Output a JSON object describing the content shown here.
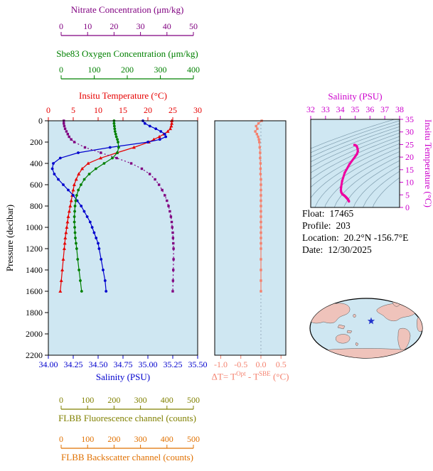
{
  "info": {
    "lines": [
      {
        "label": "Float:",
        "value": "17465"
      },
      {
        "label": "Profile:",
        "value": "203"
      },
      {
        "label": "Location:",
        "value": "20.2°N -156.7°E"
      },
      {
        "label": "Date:",
        "value": "12/30/2025"
      }
    ]
  },
  "chart_data": [
    {
      "id": "main-profile",
      "type": "line",
      "title": "",
      "ylabel": "Pressure (decibar)",
      "ylim": [
        0,
        2200
      ],
      "yticks": [
        0,
        200,
        400,
        600,
        800,
        1000,
        1200,
        1400,
        1600,
        1800,
        2000,
        2200
      ],
      "plot_bg": "#cfe7f2",
      "x_axes": [
        {
          "id": "temperature",
          "label": "Insitu Temperature (°C)",
          "color": "#e60000",
          "range": [
            0,
            30
          ],
          "ticks": [
            0,
            5,
            10,
            15,
            20,
            25,
            30
          ]
        },
        {
          "id": "oxygen",
          "label": "Sbe83 Oxygen Concentration (μm/kg)",
          "color": "#008000",
          "range": [
            0,
            400
          ],
          "ticks": [
            0,
            100,
            200,
            300,
            400
          ]
        },
        {
          "id": "nitrate",
          "label": "Nitrate Concentration (μm/kg)",
          "color": "#800080",
          "range": [
            0,
            50
          ],
          "ticks": [
            0,
            10,
            20,
            30,
            40,
            50
          ]
        },
        {
          "id": "salinity",
          "label": "Salinity (PSU)",
          "color": "#0000cd",
          "range": [
            34.0,
            35.5
          ],
          "ticks": [
            "34.00",
            "34.25",
            "34.50",
            "34.75",
            "35.00",
            "35.25",
            "35.50"
          ]
        },
        {
          "id": "fluorescence",
          "label": "FLBB Fluorescence channel (counts)",
          "color": "#808000",
          "range": [
            0,
            500
          ],
          "ticks": [
            0,
            100,
            200,
            300,
            400,
            500
          ]
        },
        {
          "id": "backscatter",
          "label": "FLBB Backscatter channel (counts)",
          "color": "#e07000",
          "range": [
            0,
            500
          ],
          "ticks": [
            0,
            100,
            200,
            300,
            400,
            500
          ]
        }
      ],
      "pressure": [
        0,
        25,
        50,
        75,
        100,
        125,
        150,
        175,
        200,
        250,
        300,
        350,
        400,
        450,
        500,
        550,
        600,
        650,
        700,
        750,
        800,
        850,
        900,
        950,
        1000,
        1050,
        1100,
        1150,
        1200,
        1300,
        1400,
        1500,
        1600
      ],
      "series": [
        {
          "name": "temperature",
          "axis": "temperature",
          "color": "#e60000",
          "marker": "triangle",
          "values": [
            24.8,
            24.8,
            24.7,
            24.5,
            24.0,
            23.2,
            22.3,
            21.2,
            20.2,
            17.2,
            13.8,
            10.5,
            8.0,
            6.8,
            6.1,
            5.6,
            5.2,
            5.0,
            4.8,
            4.6,
            4.4,
            4.2,
            4.0,
            3.85,
            3.7,
            3.55,
            3.4,
            3.3,
            3.2,
            3.0,
            2.8,
            2.6,
            2.4
          ]
        },
        {
          "name": "salinity",
          "axis": "salinity",
          "color": "#0000cd",
          "marker": "circle",
          "values": [
            34.95,
            34.97,
            35.02,
            35.08,
            35.13,
            35.17,
            35.18,
            35.12,
            35.0,
            34.62,
            34.3,
            34.12,
            34.05,
            34.04,
            34.06,
            34.1,
            34.15,
            34.2,
            34.25,
            34.29,
            34.33,
            34.36,
            34.39,
            34.42,
            34.44,
            34.46,
            34.48,
            34.5,
            34.51,
            34.53,
            34.55,
            34.57,
            34.58
          ]
        },
        {
          "name": "oxygen",
          "axis": "oxygen",
          "color": "#008000",
          "marker": "circle",
          "values": [
            160,
            160,
            161,
            162,
            163,
            165,
            167,
            170,
            172,
            174,
            170,
            155,
            130,
            105,
            85,
            70,
            60,
            52,
            47,
            44,
            42,
            41,
            40,
            40,
            41,
            42,
            43,
            45,
            47,
            50,
            54,
            58,
            62
          ]
        },
        {
          "name": "nitrate",
          "axis": "nitrate",
          "color": "#800080",
          "marker": "square",
          "dash": "2,3",
          "values": [
            1.0,
            1.0,
            1.2,
            1.5,
            2.0,
            2.5,
            3.0,
            3.8,
            5.0,
            9.0,
            15.0,
            21.0,
            26.5,
            30.5,
            33.5,
            35.5,
            37.0,
            38.2,
            39.2,
            40.0,
            40.6,
            41.1,
            41.5,
            41.8,
            42.0,
            42.2,
            42.3,
            42.4,
            42.5,
            42.5,
            42.4,
            42.3,
            42.2
          ]
        }
      ]
    },
    {
      "id": "delta-t",
      "type": "line",
      "xlabel_parts": {
        "prefix": "ΔT= T",
        "sup1": "Opt",
        "mid": " - T",
        "sup2": "SBE",
        "suffix": " (°C)"
      },
      "color": "#f4826f",
      "xlim": [
        -1.15,
        0.62
      ],
      "xticks": [
        "-1.0",
        "-0.5",
        "0.0",
        "0.5"
      ],
      "xtick_values": [
        -1.0,
        -0.5,
        0.0,
        0.5
      ],
      "plot_bg": "#cfe7f2",
      "pressure": [
        0,
        25,
        50,
        75,
        100,
        125,
        150,
        175,
        200,
        250,
        300,
        350,
        400,
        450,
        500,
        550,
        600,
        650,
        700,
        750,
        800,
        850,
        900,
        950,
        1000,
        1050,
        1100,
        1150,
        1200,
        1300,
        1400,
        1500,
        1600
      ],
      "values": [
        0.02,
        -0.06,
        -0.12,
        -0.09,
        -0.14,
        -0.1,
        -0.07,
        -0.05,
        -0.04,
        -0.03,
        -0.02,
        -0.02,
        -0.01,
        -0.01,
        -0.01,
        0,
        0,
        0,
        0,
        0,
        0,
        0,
        0,
        0,
        0,
        0,
        0,
        0,
        0,
        0,
        0,
        0,
        0
      ]
    },
    {
      "id": "ts-diagram",
      "type": "line",
      "xlabel": "Salinity (PSU)",
      "ylabel": "Insitu Temperature (°C)",
      "label_color": "#cc00cc",
      "curve_color": "#ee00a0",
      "xlim": [
        32,
        38
      ],
      "xticks": [
        32,
        33,
        34,
        35,
        36,
        37,
        38
      ],
      "ylim": [
        0,
        35
      ],
      "yticks": [
        0,
        5,
        10,
        15,
        20,
        25,
        30,
        35
      ],
      "plot_bg": "#cfe7f2",
      "salinity": [
        34.95,
        34.97,
        35.02,
        35.08,
        35.13,
        35.17,
        35.18,
        35.12,
        35.0,
        34.62,
        34.3,
        34.12,
        34.05,
        34.04,
        34.06,
        34.1,
        34.15,
        34.2,
        34.25,
        34.29,
        34.33,
        34.36,
        34.39,
        34.42,
        34.44,
        34.46,
        34.48,
        34.5,
        34.51,
        34.53,
        34.55,
        34.57,
        34.58
      ],
      "temperature": [
        24.8,
        24.8,
        24.7,
        24.5,
        24.0,
        23.2,
        22.3,
        21.2,
        20.2,
        17.2,
        13.8,
        10.5,
        8.0,
        6.8,
        6.1,
        5.6,
        5.2,
        5.0,
        4.8,
        4.6,
        4.4,
        4.2,
        4.0,
        3.85,
        3.7,
        3.55,
        3.4,
        3.3,
        3.2,
        3.0,
        2.8,
        2.6,
        2.4
      ]
    }
  ]
}
